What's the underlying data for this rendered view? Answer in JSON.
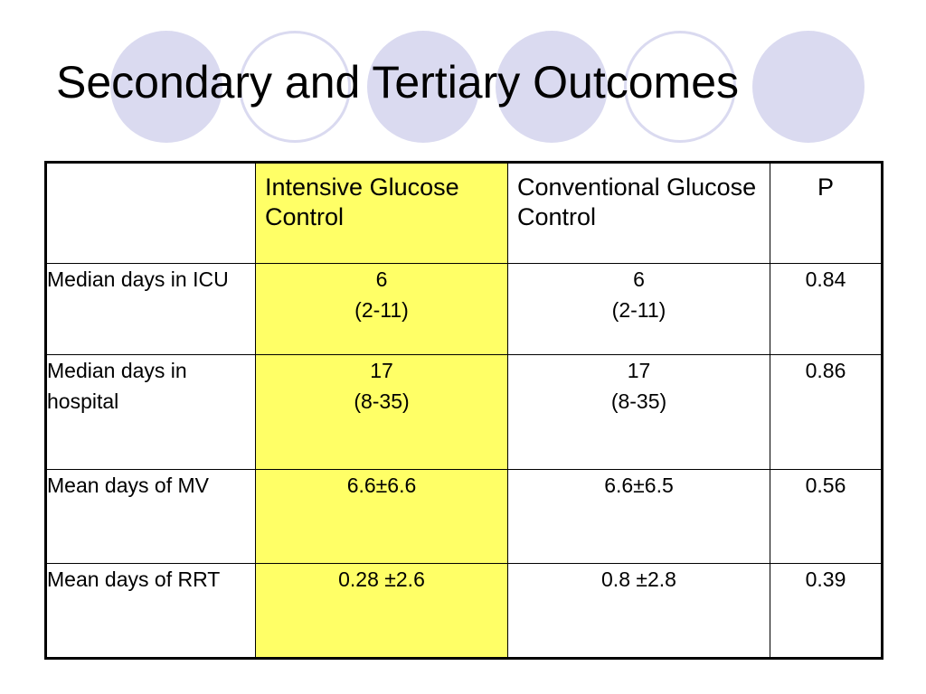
{
  "title": "Secondary and Tertiary Outcomes",
  "colors": {
    "highlight": "#ffff66",
    "circle_fill": "#dadaf0",
    "circle_outline": "#dadaf0"
  },
  "table": {
    "headers": [
      "",
      "Intensive Glucose Control",
      "Conventional Glucose Control",
      "P"
    ],
    "rows": [
      {
        "label": "Median days in ICU",
        "intensive": [
          "6",
          "(2-11)"
        ],
        "conventional": [
          "6",
          "(2-11)"
        ],
        "p": "0.84"
      },
      {
        "label": "Median days in hospital",
        "intensive": [
          "17",
          "(8-35)"
        ],
        "conventional": [
          "17",
          "(8-35)"
        ],
        "p": "0.86"
      },
      {
        "label": "Mean days of MV",
        "intensive": [
          "6.6±6.6"
        ],
        "conventional": [
          "6.6±6.5"
        ],
        "p": "0.56"
      },
      {
        "label": "Mean days of RRT",
        "intensive": [
          "0.28 ±2.6"
        ],
        "conventional": [
          "0.8 ±2.8"
        ],
        "p": "0.39"
      }
    ]
  }
}
